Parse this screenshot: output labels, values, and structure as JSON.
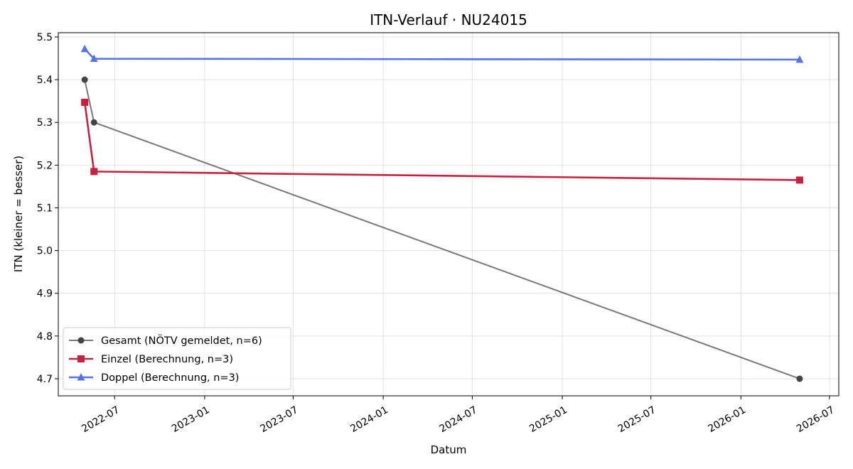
{
  "chart_data": {
    "type": "line",
    "title": "ITN-Verlauf · NU24015",
    "xlabel": "Datum",
    "ylabel": "ITN  (kleiner = besser)",
    "x_type": "date",
    "xlim": [
      "2022-03-08",
      "2026-07-20"
    ],
    "ylim": [
      4.66,
      5.51
    ],
    "x_ticks": [
      "2022-07-01",
      "2023-01-01",
      "2023-07-01",
      "2024-01-01",
      "2024-07-01",
      "2025-01-01",
      "2025-07-01",
      "2026-01-01",
      "2026-07-01"
    ],
    "x_tick_labels": [
      "2022-07",
      "2023-01",
      "2023-07",
      "2024-01",
      "2024-07",
      "2025-01",
      "2025-07",
      "2026-01",
      "2026-07"
    ],
    "y_ticks": [
      4.7,
      4.8,
      4.9,
      5.0,
      5.1,
      5.2,
      5.3,
      5.4,
      5.5
    ],
    "y_tick_labels": [
      "4.7",
      "4.8",
      "4.9",
      "5.0",
      "5.1",
      "5.2",
      "5.3",
      "5.4",
      "5.5"
    ],
    "grid": true,
    "legend_position": "lower-left",
    "series": [
      {
        "name": "Gesamt (NÖTV gemeldet, n=6)",
        "color": "#444444",
        "line_opacity": 0.72,
        "marker": "circle",
        "x": [
          "2022-05-01",
          "2022-05-20",
          "2026-05-01"
        ],
        "y": [
          5.4,
          5.3,
          4.7
        ]
      },
      {
        "name": "Einzel (Berechnung, n=3)",
        "color": "#c8203f",
        "line_opacity": 1,
        "marker": "square",
        "x": [
          "2022-05-01",
          "2022-05-20",
          "2026-05-01"
        ],
        "y": [
          5.347,
          5.185,
          5.165
        ]
      },
      {
        "name": "Doppel (Berechnung, n=3)",
        "color": "#5573e8",
        "line_opacity": 1,
        "marker": "triangle",
        "x": [
          "2022-05-01",
          "2022-05-20",
          "2026-05-01"
        ],
        "y": [
          5.472,
          5.449,
          5.447
        ]
      }
    ]
  }
}
